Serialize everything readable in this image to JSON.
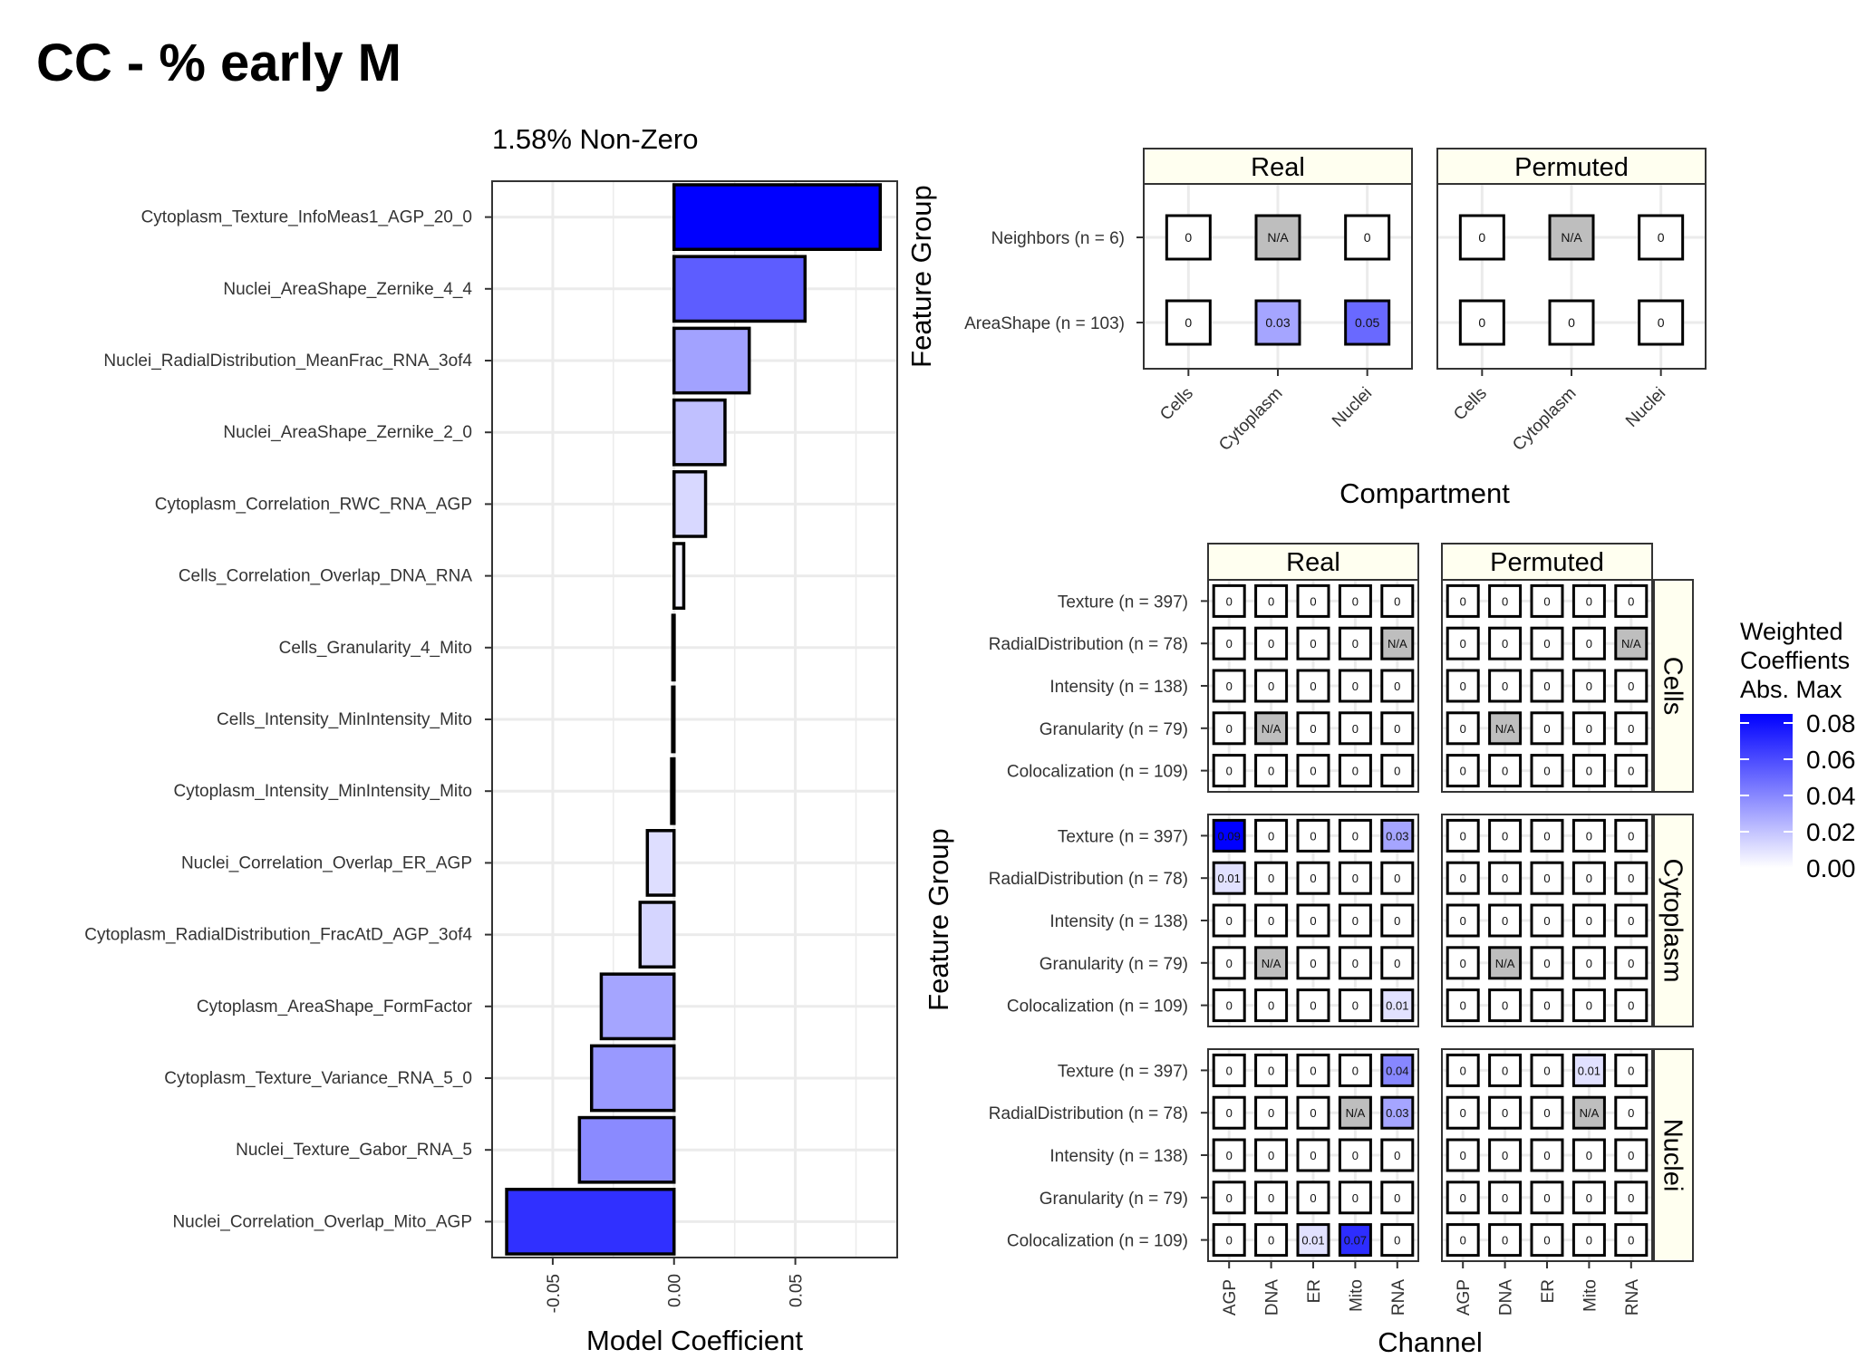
{
  "title": "CC - % early M",
  "colors": {
    "scale_low": "#ffffff",
    "scale_high": "#0000ff",
    "na_fill": "#bebebe",
    "strip_fill": "#fffff0",
    "grid": "#ebebeb"
  },
  "chart_data": [
    {
      "type": "bar",
      "orientation": "horizontal",
      "title": "1.58% Non-Zero",
      "xlabel": "Model Coefficient",
      "ylabel": "",
      "xlim": [
        -0.075,
        0.092
      ],
      "xticks": [
        "-0.05",
        "0.00",
        "0.05"
      ],
      "xtick_values": [
        -0.05,
        0.0,
        0.05
      ],
      "grid": true,
      "categories": [
        "Cytoplasm_Texture_InfoMeas1_AGP_20_0",
        "Nuclei_AreaShape_Zernike_4_4",
        "Nuclei_RadialDistribution_MeanFrac_RNA_3of4",
        "Nuclei_AreaShape_Zernike_2_0",
        "Cytoplasm_Correlation_RWC_RNA_AGP",
        "Cells_Correlation_Overlap_DNA_RNA",
        "Cells_Granularity_4_Mito",
        "Cells_Intensity_MinIntensity_Mito",
        "Cytoplasm_Intensity_MinIntensity_Mito",
        "Nuclei_Correlation_Overlap_ER_AGP",
        "Cytoplasm_RadialDistribution_FracAtD_AGP_3of4",
        "Cytoplasm_AreaShape_FormFactor",
        "Cytoplasm_Texture_Variance_RNA_5_0",
        "Nuclei_Texture_Gabor_RNA_5",
        "Nuclei_Correlation_Overlap_Mito_AGP"
      ],
      "values": [
        0.085,
        0.054,
        0.031,
        0.021,
        0.013,
        0.004,
        -0.0005,
        -0.0006,
        -0.001,
        -0.011,
        -0.014,
        -0.03,
        -0.034,
        -0.039,
        -0.069
      ]
    },
    {
      "type": "heatmap",
      "title": "",
      "xlabel": "Compartment",
      "ylabel": "Feature Group",
      "facets": [
        "Real",
        "Permuted"
      ],
      "x": [
        "Cells",
        "Cytoplasm",
        "Nuclei"
      ],
      "y": [
        "Neighbors (n = 6)",
        "AreaShape (n = 103)"
      ],
      "cells": {
        "Real": [
          [
            "0",
            "N/A",
            "0"
          ],
          [
            "0",
            "0.03",
            "0.05"
          ]
        ],
        "Permuted": [
          [
            "0",
            "N/A",
            "0"
          ],
          [
            "0",
            "0",
            "0"
          ]
        ]
      }
    },
    {
      "type": "heatmap",
      "title": "",
      "xlabel": "Channel",
      "ylabel": "Feature Group",
      "col_facets": [
        "Real",
        "Permuted"
      ],
      "row_facets": [
        "Cells",
        "Cytoplasm",
        "Nuclei"
      ],
      "x": [
        "AGP",
        "DNA",
        "ER",
        "Mito",
        "RNA"
      ],
      "y": [
        "Texture (n = 397)",
        "RadialDistribution (n = 78)",
        "Intensity (n = 138)",
        "Granularity (n = 79)",
        "Colocalization (n = 109)"
      ],
      "cells": {
        "Cells": {
          "Real": [
            [
              "0",
              "0",
              "0",
              "0",
              "0"
            ],
            [
              "0",
              "0",
              "0",
              "0",
              "N/A"
            ],
            [
              "0",
              "0",
              "0",
              "0",
              "0"
            ],
            [
              "0",
              "N/A",
              "0",
              "0",
              "0"
            ],
            [
              "0",
              "0",
              "0",
              "0",
              "0"
            ]
          ],
          "Permuted": [
            [
              "0",
              "0",
              "0",
              "0",
              "0"
            ],
            [
              "0",
              "0",
              "0",
              "0",
              "N/A"
            ],
            [
              "0",
              "0",
              "0",
              "0",
              "0"
            ],
            [
              "0",
              "N/A",
              "0",
              "0",
              "0"
            ],
            [
              "0",
              "0",
              "0",
              "0",
              "0"
            ]
          ]
        },
        "Cytoplasm": {
          "Real": [
            [
              "0.09",
              "0",
              "0",
              "0",
              "0.03"
            ],
            [
              "0.01",
              "0",
              "0",
              "0",
              "0"
            ],
            [
              "0",
              "0",
              "0",
              "0",
              "0"
            ],
            [
              "0",
              "N/A",
              "0",
              "0",
              "0"
            ],
            [
              "0",
              "0",
              "0",
              "0",
              "0.01"
            ]
          ],
          "Permuted": [
            [
              "0",
              "0",
              "0",
              "0",
              "0"
            ],
            [
              "0",
              "0",
              "0",
              "0",
              "0"
            ],
            [
              "0",
              "0",
              "0",
              "0",
              "0"
            ],
            [
              "0",
              "N/A",
              "0",
              "0",
              "0"
            ],
            [
              "0",
              "0",
              "0",
              "0",
              "0"
            ]
          ]
        },
        "Nuclei": {
          "Real": [
            [
              "0",
              "0",
              "0",
              "0",
              "0.04"
            ],
            [
              "0",
              "0",
              "0",
              "N/A",
              "0.03"
            ],
            [
              "0",
              "0",
              "0",
              "0",
              "0"
            ],
            [
              "0",
              "0",
              "0",
              "0",
              "0"
            ],
            [
              "0",
              "0",
              "0.01",
              "0.07",
              "0"
            ]
          ],
          "Permuted": [
            [
              "0",
              "0",
              "0",
              "0.01",
              "0"
            ],
            [
              "0",
              "0",
              "0",
              "N/A",
              "0"
            ],
            [
              "0",
              "0",
              "0",
              "0",
              "0"
            ],
            [
              "0",
              "0",
              "0",
              "0",
              "0"
            ],
            [
              "0",
              "0",
              "0",
              "0",
              "0"
            ]
          ]
        }
      },
      "legend": {
        "title": [
          "Weighted",
          "Coeffients",
          "Abs. Max"
        ],
        "ticks": [
          "0.08",
          "0.06",
          "0.04",
          "0.02",
          "0.00"
        ],
        "tick_values": [
          0.08,
          0.06,
          0.04,
          0.02,
          0.0
        ],
        "max": 0.085
      }
    }
  ]
}
